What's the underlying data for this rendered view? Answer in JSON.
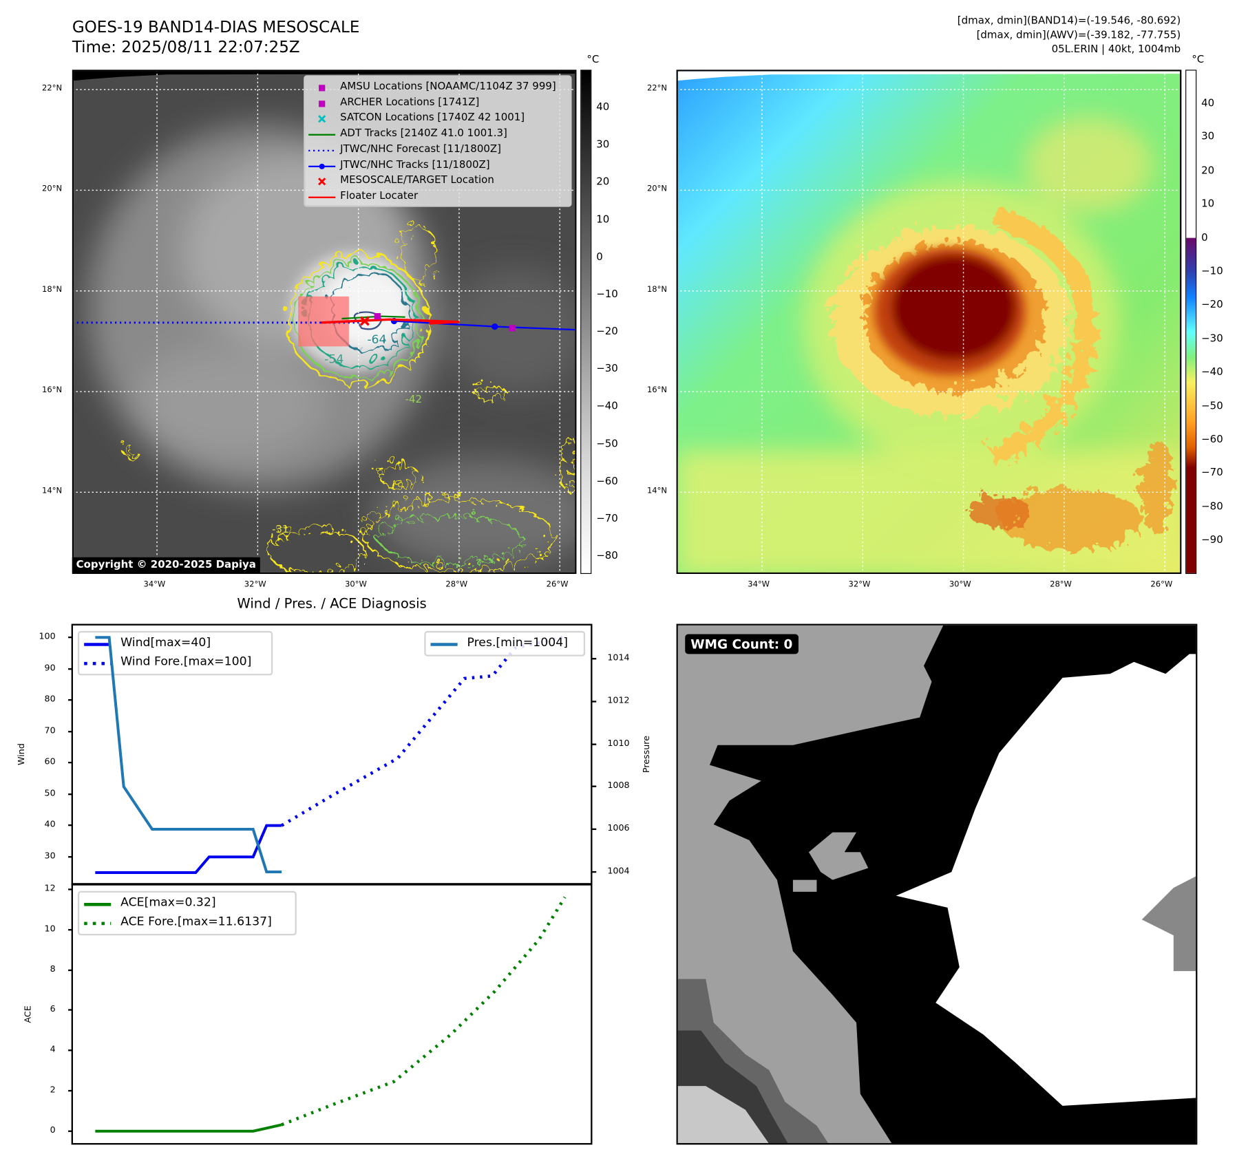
{
  "header": {
    "title_line1": "GOES-19 BAND14-DIAS MESOSCALE",
    "title_line2": "Time: 2025/08/11 22:07:25Z",
    "info_line1": "[dmax, dmin](BAND14)=(-19.546, -80.692)",
    "info_line2": "[dmax, dmin](AWV)=(-39.182, -77.755)",
    "info_line3": "05L.ERIN | 40kt, 1004mb"
  },
  "map": {
    "lat_labels": [
      "22°N",
      "20°N",
      "18°N",
      "16°N",
      "14°N"
    ],
    "lon_labels": [
      "34°W",
      "32°W",
      "30°W",
      "28°W",
      "26°W"
    ],
    "contour_labels": [
      "-64",
      "-54",
      "-42",
      "-31"
    ],
    "copyright": "Copyright © 2020-2025 Dapiya",
    "legend": [
      {
        "label": "AMSU Locations [NOAAMC/1104Z 37 999]",
        "symbol": "square",
        "color": "#c000c0"
      },
      {
        "label": "ARCHER Locations [1741Z]",
        "symbol": "square",
        "color": "#c000c0"
      },
      {
        "label": "SATCON Locations [1740Z 42 1001]",
        "symbol": "x",
        "color": "#00c0c0"
      },
      {
        "label": "ADT Tracks [2140Z 41.0 1001.3]",
        "symbol": "line",
        "color": "#008000"
      },
      {
        "label": "JTWC/NHC Forecast [11/1800Z]",
        "symbol": "dotted",
        "color": "#0000ff"
      },
      {
        "label": "JTWC/NHC Tracks [11/1800Z]",
        "symbol": "line-dot",
        "color": "#0000ff"
      },
      {
        "label": "MESOSCALE/TARGET Location",
        "symbol": "x",
        "color": "#ff0000"
      },
      {
        "label": "Floater Locater",
        "symbol": "line",
        "color": "#ff0000"
      }
    ]
  },
  "colorbar_left": {
    "unit": "°C",
    "ticks": [
      "40",
      "30",
      "20",
      "10",
      "0",
      "−10",
      "−20",
      "−30",
      "−40",
      "−50",
      "−60",
      "−70",
      "−80"
    ],
    "range": [
      -84.5,
      50
    ]
  },
  "colorbar_right": {
    "unit": "°C",
    "ticks": [
      "40",
      "30",
      "20",
      "10",
      "0",
      "−10",
      "−20",
      "−30",
      "−40",
      "−50",
      "−60",
      "−70",
      "−80",
      "−90"
    ],
    "range": [
      -100,
      50
    ]
  },
  "wmg": {
    "label": "WMG Count: 0"
  },
  "chart_data": {
    "type": "line",
    "title": "Wind / Pres. / ACE Diagnosis",
    "x_range": [
      0,
      100
    ],
    "upper": {
      "ylabel_left": "Wind",
      "ylabel_right": "Pressure",
      "ylim_left": [
        21.4,
        103.8
      ],
      "ylim_right": [
        1003.44,
        1015.56
      ],
      "yticks_left": [
        30,
        40,
        50,
        60,
        70,
        80,
        90,
        100
      ],
      "yticks_right": [
        1004,
        1006,
        1008,
        1010,
        1012,
        1014
      ],
      "series": [
        {
          "name": "Wind[max=40]",
          "axis": "left",
          "style": "solid",
          "color": "#0000ee",
          "x": [
            4.3,
            23.7,
            26.3,
            34.8,
            37.4,
            40.3
          ],
          "y": [
            25,
            25,
            30,
            30,
            40,
            40
          ]
        },
        {
          "name": "Wind Fore.[max=100]",
          "axis": "left",
          "style": "dotted",
          "color": "#0000ee",
          "x": [
            40.3,
            50,
            62.7,
            75.6,
            81,
            85.4,
            94.5
          ],
          "y": [
            40,
            49.5,
            61.4,
            86.9,
            87.7,
            96.6,
            100
          ]
        },
        {
          "name": "Pres.[min=1004]",
          "axis": "right",
          "style": "solid",
          "color": "#1f77b4",
          "x": [
            4.3,
            7.0,
            9.8,
            15.3,
            34.8,
            37.4,
            40.3
          ],
          "y": [
            1015,
            1015,
            1008,
            1006,
            1006,
            1004,
            1004
          ]
        }
      ]
    },
    "lower": {
      "ylabel": "ACE",
      "ylim": [
        -0.59,
        12.23
      ],
      "yticks": [
        0,
        2,
        4,
        6,
        8,
        10,
        12
      ],
      "series": [
        {
          "name": "ACE[max=0.32]",
          "style": "solid",
          "color": "#008000",
          "x": [
            4.3,
            34.8,
            40.3
          ],
          "y": [
            0,
            0,
            0.32
          ]
        },
        {
          "name": "ACE Fore.[max=11.6137]",
          "style": "dotted",
          "color": "#008000",
          "x": [
            40.3,
            50,
            62,
            73,
            81.5,
            90,
            95
          ],
          "y": [
            0.32,
            1.3,
            2.46,
            4.8,
            6.95,
            9.5,
            11.61
          ]
        }
      ]
    }
  }
}
